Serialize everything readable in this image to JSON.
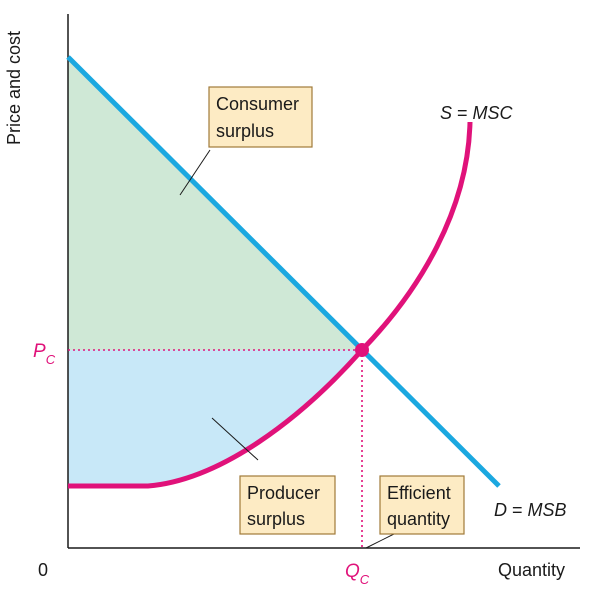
{
  "axes": {
    "y_label": "Price and cost",
    "x_label": "Quantity",
    "origin_label": "0"
  },
  "equilibrium": {
    "price_symbol": "P",
    "price_subscript": "C",
    "quantity_symbol": "Q",
    "quantity_subscript": "C"
  },
  "curves": {
    "supply": {
      "letter": "S",
      "equals": " = ",
      "name": "MSC"
    },
    "demand": {
      "letter": "D",
      "equals": " = ",
      "name": "MSB"
    }
  },
  "callouts": {
    "consumer_surplus": [
      "Consumer",
      "surplus"
    ],
    "producer_surplus": [
      "Producer",
      "surplus"
    ],
    "efficient_quantity": [
      "Efficient",
      "quantity"
    ]
  },
  "colors": {
    "demand_line": "#1ba8e0",
    "supply_line": "#e0127a",
    "consumer_surplus_fill": "#cfe8d6",
    "producer_surplus_fill": "#c8e8f8",
    "callout_fill": "#fdebc4",
    "callout_border": "#a07a3a",
    "axis": "#1a1a1a"
  }
}
